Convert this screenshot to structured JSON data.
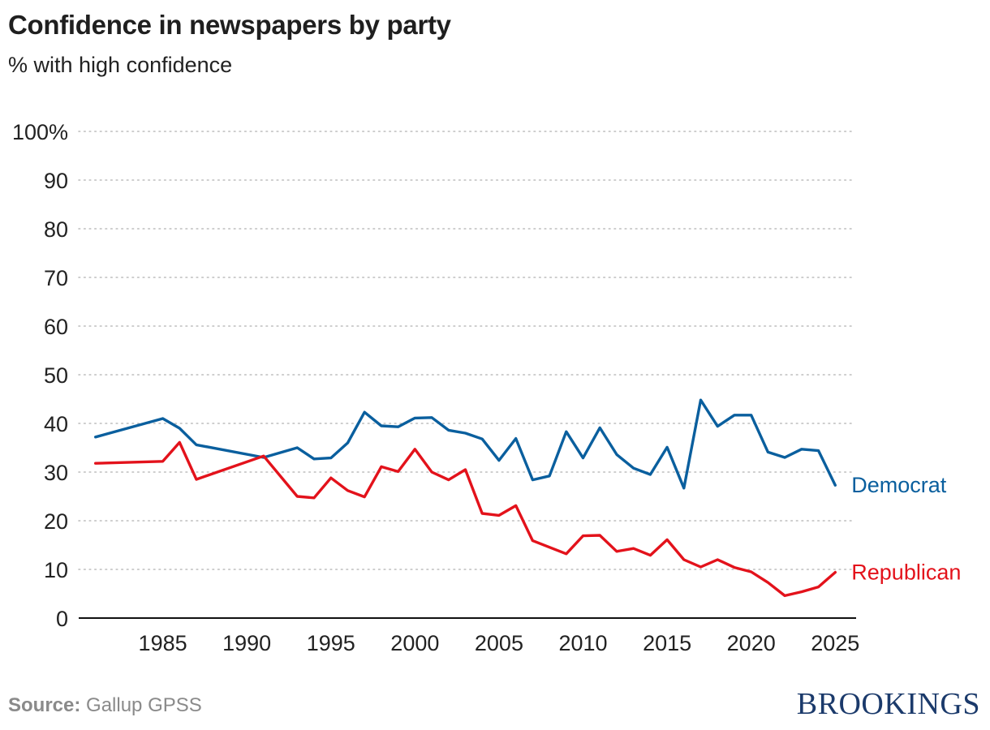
{
  "chart_data": {
    "type": "line",
    "title": "Confidence in newspapers by party",
    "subtitle": "% with high confidence",
    "ylim": [
      0,
      100
    ],
    "yticks": [
      0,
      10,
      20,
      30,
      40,
      50,
      60,
      70,
      80,
      90,
      100
    ],
    "ytick_labels": [
      "0",
      "10",
      "20",
      "30",
      "40",
      "50",
      "60",
      "70",
      "80",
      "90",
      "100%"
    ],
    "xlim": [
      1980,
      2026
    ],
    "xticks": [
      1985,
      1990,
      1995,
      2000,
      2005,
      2010,
      2015,
      2020,
      2025
    ],
    "xtick_labels": [
      "1985",
      "1990",
      "1995",
      "2000",
      "2005",
      "2010",
      "2015",
      "2020",
      "2025"
    ],
    "grid": "horizontal-dotted",
    "series": [
      {
        "name": "Democrat",
        "color": "#0a5f9e",
        "x": [
          1981,
          1985,
          1986,
          1987,
          1991,
          1993,
          1994,
          1995,
          1996,
          1997,
          1998,
          1999,
          2000,
          2001,
          2002,
          2003,
          2004,
          2005,
          2006,
          2007,
          2008,
          2009,
          2010,
          2011,
          2012,
          2013,
          2014,
          2015,
          2016,
          2017,
          2018,
          2019,
          2020,
          2021,
          2022,
          2023,
          2024,
          2025
        ],
        "values": [
          37.2,
          41.0,
          39.0,
          35.6,
          33.0,
          35.0,
          32.7,
          32.9,
          36.0,
          42.3,
          39.5,
          39.3,
          41.1,
          41.2,
          38.6,
          38.0,
          36.8,
          32.4,
          36.9,
          28.4,
          29.2,
          38.3,
          32.9,
          39.1,
          33.6,
          30.8,
          29.5,
          35.1,
          26.7,
          44.8,
          39.4,
          41.7,
          41.7,
          34.1,
          33.0,
          34.7,
          34.4,
          27.3
        ]
      },
      {
        "name": "Republican",
        "color": "#e3121b",
        "x": [
          1981,
          1985,
          1986,
          1987,
          1991,
          1993,
          1994,
          1995,
          1996,
          1997,
          1998,
          1999,
          2000,
          2001,
          2002,
          2003,
          2004,
          2005,
          2006,
          2007,
          2009,
          2010,
          2011,
          2012,
          2013,
          2014,
          2015,
          2016,
          2017,
          2018,
          2019,
          2020,
          2021,
          2022,
          2023,
          2024,
          2025
        ],
        "values": [
          31.8,
          32.2,
          36.1,
          28.5,
          33.3,
          25.0,
          24.7,
          28.8,
          26.2,
          24.9,
          31.1,
          30.1,
          34.7,
          30.0,
          28.4,
          30.5,
          21.5,
          21.1,
          23.1,
          15.9,
          13.2,
          16.9,
          17.0,
          13.7,
          14.3,
          12.9,
          16.1,
          12.0,
          10.5,
          12.0,
          10.4,
          9.5,
          7.3,
          4.6,
          5.4,
          6.4,
          9.4
        ]
      }
    ]
  },
  "footer": {
    "source_label": "Source:",
    "source_text": "Gallup GPSS",
    "brand": "BROOKINGS"
  }
}
